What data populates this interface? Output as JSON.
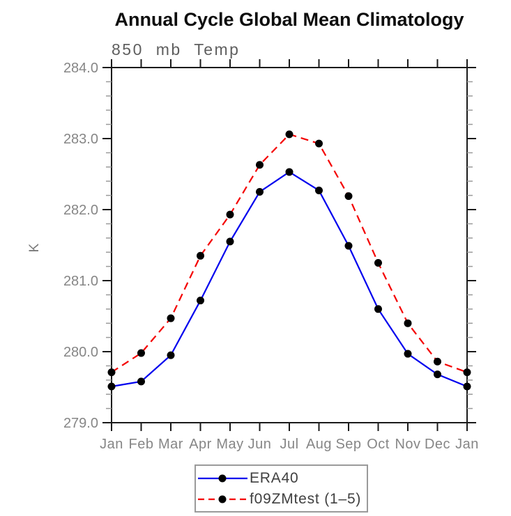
{
  "header": {
    "title": "Annual Cycle Global Mean Climatology"
  },
  "chart_data": {
    "type": "line",
    "title": "Annual Cycle Global Mean Climatology",
    "subtitle": "850 mb Temp",
    "ylabel": "K",
    "categories": [
      "Jan",
      "Feb",
      "Mar",
      "Apr",
      "May",
      "Jun",
      "Jul",
      "Aug",
      "Sep",
      "Oct",
      "Nov",
      "Dec",
      "Jan"
    ],
    "ylim": [
      279.0,
      284.0
    ],
    "ytick_major_step": 1.0,
    "ytick_minor_step": 0.2,
    "ytick_labels": [
      "284.0",
      "283.0",
      "282.0",
      "281.0",
      "280.0",
      "279.0"
    ],
    "grid": false,
    "tick_direction": "out",
    "legend_position": "bottom-center",
    "series": [
      {
        "name": "ERA40",
        "color": "#0000ee",
        "line_style": "solid",
        "values": [
          279.51,
          279.58,
          279.95,
          280.72,
          281.55,
          282.25,
          282.53,
          282.27,
          281.49,
          280.6,
          279.97,
          279.68,
          279.51
        ]
      },
      {
        "name": "f09ZMtest (1–5)",
        "color": "#f40000",
        "line_style": "dashed",
        "values": [
          279.71,
          279.98,
          280.47,
          281.35,
          281.93,
          282.63,
          283.06,
          282.93,
          282.19,
          281.25,
          280.4,
          279.86,
          279.71
        ]
      }
    ],
    "marker": {
      "shape": "circle",
      "color": "#000000",
      "radius": 5.5
    },
    "axis_color": "#1a1a1a",
    "minor_tick_color": "#9b9b9b",
    "label_color": "#868686"
  }
}
